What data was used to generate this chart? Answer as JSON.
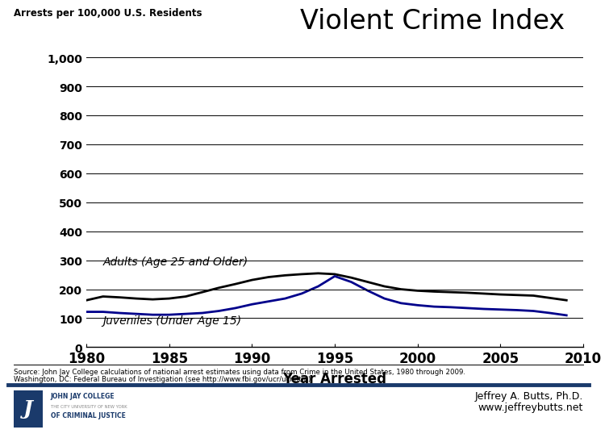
{
  "title": "Violent Crime Index",
  "ylabel": "Arrests per 100,000 U.S. Residents",
  "xlabel": "Year Arrested",
  "ylim": [
    0,
    1000
  ],
  "yticks": [
    0,
    100,
    200,
    300,
    400,
    500,
    600,
    700,
    800,
    900,
    1000
  ],
  "ytick_labels": [
    "0",
    "100",
    "200",
    "300",
    "400",
    "500",
    "600",
    "700",
    "800",
    "900",
    "1,000"
  ],
  "xlim": [
    1980,
    2010
  ],
  "xticks": [
    1980,
    1985,
    1990,
    1995,
    2000,
    2005,
    2010
  ],
  "adults_years": [
    1980,
    1981,
    1982,
    1983,
    1984,
    1985,
    1986,
    1987,
    1988,
    1989,
    1990,
    1991,
    1992,
    1993,
    1994,
    1995,
    1996,
    1997,
    1998,
    1999,
    2000,
    2001,
    2002,
    2003,
    2004,
    2005,
    2006,
    2007,
    2008,
    2009
  ],
  "adults_values": [
    162,
    175,
    172,
    168,
    165,
    168,
    175,
    190,
    205,
    218,
    232,
    242,
    248,
    252,
    255,
    252,
    240,
    225,
    210,
    200,
    195,
    192,
    190,
    188,
    185,
    182,
    180,
    178,
    170,
    162
  ],
  "juveniles_years": [
    1980,
    1981,
    1982,
    1983,
    1984,
    1985,
    1986,
    1987,
    1988,
    1989,
    1990,
    1991,
    1992,
    1993,
    1994,
    1995,
    1996,
    1997,
    1998,
    1999,
    2000,
    2001,
    2002,
    2003,
    2004,
    2005,
    2006,
    2007,
    2008,
    2009
  ],
  "juveniles_values": [
    122,
    122,
    118,
    115,
    112,
    112,
    115,
    118,
    125,
    135,
    148,
    158,
    168,
    185,
    210,
    245,
    225,
    195,
    168,
    152,
    145,
    140,
    138,
    135,
    132,
    130,
    128,
    125,
    118,
    110
  ],
  "adults_color": "#000000",
  "juveniles_color": "#00008B",
  "adults_label": "Adults (Age 25 and Older)",
  "juveniles_label": "Juveniles (Under Age 15)",
  "source_line1": "Source: John Jay College calculations of national arrest estimates using data from Crime in the United States, 1980 through 2009.",
  "source_line2": "Washington, DC: Federal Bureau of Investigation (see http://www.fbi.gov/ucr/ucr.htm).",
  "credit_name": "Jeffrey A. Butts, Ph.D.",
  "credit_url": "www.jeffreybutts.net",
  "bg_color": "#ffffff",
  "line_width": 2.0,
  "grid_color": "#000000",
  "separator_color": "#1a3a6b",
  "logo_blue": "#1a3a6b",
  "logo_gray": "#888888"
}
